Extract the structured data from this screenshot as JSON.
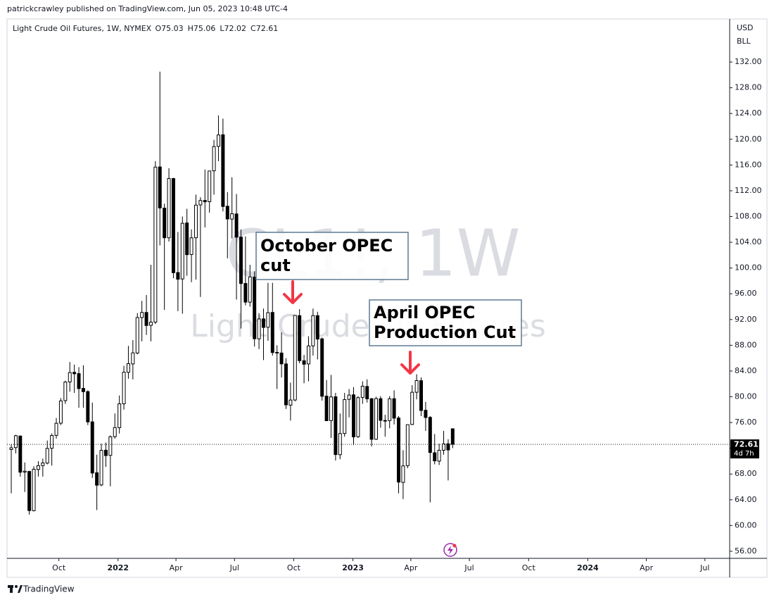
{
  "header": {
    "publisher": "patrickcrawley published on TradingView.com, Jun 05, 2023 10:48 UTC-4"
  },
  "footer": {
    "brand": "TradingView"
  },
  "chart_data": {
    "type": "candlestick",
    "title": "Light Crude Oil Futures, 1W, NYMEX",
    "ohlc_legend": [
      "O75.03",
      "H75.06",
      "L72.02",
      "C72.61"
    ],
    "watermark": [
      "CL1!, 1W",
      "Light Crude Oil Futures"
    ],
    "currency": "USD",
    "unit": "BLL",
    "last_price": 72.61,
    "countdown": "4d 7h",
    "up_color": "#ffffff",
    "down_color": "#000000",
    "outline_color": "#000000",
    "grid": false,
    "annotations": [
      {
        "lines": [
          "October OPEC",
          "cut"
        ]
      },
      {
        "lines": [
          "April OPEC",
          "Production Cut"
        ]
      }
    ],
    "x": [
      0,
      1,
      2,
      3,
      4,
      5,
      6,
      7,
      8,
      9,
      10,
      11,
      12,
      13,
      14,
      15,
      16,
      17,
      18,
      19,
      20,
      21,
      22,
      23,
      24,
      25,
      26,
      27,
      28,
      29,
      30,
      31,
      32,
      33,
      34,
      35,
      36,
      37,
      38,
      39,
      40,
      41,
      42,
      43,
      44,
      45,
      46,
      47,
      48,
      49,
      50,
      51,
      52,
      53,
      54,
      55,
      56,
      57,
      58,
      59,
      60,
      61,
      62,
      63,
      64,
      65,
      66,
      67,
      68,
      69,
      70,
      71,
      72,
      73,
      74,
      75,
      76,
      77,
      78,
      79,
      80,
      81,
      82,
      83,
      84,
      85,
      86,
      87,
      88,
      89,
      90,
      91,
      92,
      93,
      94,
      95,
      96,
      97,
      98
    ],
    "open": [
      71.8,
      72.1,
      73.9,
      68.3,
      68.4,
      62.3,
      68.7,
      69.3,
      69.7,
      72.0,
      74.0,
      75.9,
      79.4,
      82.3,
      83.8,
      83.6,
      81.3,
      80.8,
      76.1,
      68.2,
      66.3,
      71.7,
      70.9,
      73.8,
      75.2,
      78.9,
      83.8,
      85.1,
      86.8,
      92.3,
      93.1,
      91.1,
      91.6,
      115.7,
      109.3,
      104.7,
      113.9,
      99.3,
      98.3,
      107.0,
      102.1,
      104.7,
      109.8,
      110.5,
      110.3,
      115.1,
      118.9,
      120.7,
      109.6,
      107.6,
      108.4,
      104.8,
      97.6,
      94.7,
      98.6,
      89.0,
      92.1,
      90.8,
      93.1,
      86.9,
      86.8,
      85.1,
      78.7,
      79.5,
      92.6,
      85.6,
      85.1,
      87.9,
      92.6,
      89.0,
      80.1,
      76.3,
      80.0,
      71.0,
      74.3,
      79.6,
      80.3,
      73.8,
      79.9,
      81.6,
      79.7,
      73.4,
      79.7,
      76.3,
      76.3,
      79.7,
      76.7,
      66.7,
      69.3,
      75.7,
      80.7,
      82.5,
      77.9,
      76.8,
      71.3,
      70.0,
      71.7,
      72.7,
      75.03
    ],
    "high": [
      72.6,
      74.1,
      74.0,
      69.8,
      68.5,
      69.2,
      70.0,
      70.4,
      73.2,
      74.3,
      76.7,
      79.8,
      82.5,
      85.4,
      85.0,
      84.6,
      84.9,
      81.0,
      79.1,
      71.0,
      72.7,
      72.9,
      74.0,
      77.4,
      80.2,
      84.8,
      87.9,
      88.8,
      93.0,
      94.9,
      95.8,
      100.5,
      116.6,
      130.5,
      110.0,
      115.5,
      114.0,
      105.6,
      108.0,
      109.2,
      106.0,
      111.4,
      111.0,
      115.3,
      115.1,
      119.9,
      123.7,
      123.2,
      111.8,
      114.1,
      111.5,
      106.0,
      104.9,
      100.5,
      99.5,
      93.0,
      93.7,
      97.7,
      97.7,
      88.0,
      90.0,
      86.0,
      82.2,
      92.7,
      93.6,
      86.5,
      89.4,
      93.7,
      93.2,
      89.2,
      82.6,
      83.4,
      80.6,
      77.4,
      80.6,
      81.2,
      81.5,
      80.1,
      82.4,
      82.7,
      79.8,
      80.0,
      80.1,
      77.2,
      80.1,
      81.0,
      77.0,
      71.7,
      75.7,
      81.8,
      83.5,
      83.0,
      79.2,
      77.0,
      74.2,
      72.7,
      74.7,
      73.4,
      75.06
    ],
    "low": [
      65.0,
      71.2,
      67.6,
      65.2,
      61.7,
      62.2,
      67.6,
      67.6,
      69.5,
      69.3,
      73.5,
      75.6,
      78.9,
      80.8,
      80.6,
      78.3,
      78.3,
      75.6,
      67.4,
      62.4,
      66.1,
      69.1,
      66.1,
      73.5,
      74.3,
      78.0,
      82.8,
      82.7,
      86.6,
      88.6,
      89.6,
      88.6,
      91.3,
      103.5,
      93.5,
      104.1,
      98.4,
      93.3,
      92.9,
      98.8,
      97.8,
      98.2,
      95.5,
      106.3,
      108.6,
      111.4,
      116.6,
      108.8,
      101.5,
      104.6,
      95.1,
      90.6,
      94.2,
      94.0,
      87.8,
      87.4,
      85.7,
      88.7,
      86.4,
      81.2,
      83.0,
      78.1,
      76.3,
      79.3,
      85.2,
      82.1,
      82.4,
      86.4,
      85.8,
      79.4,
      76.8,
      73.6,
      70.1,
      70.3,
      73.8,
      76.8,
      72.5,
      73.6,
      78.9,
      79.1,
      72.3,
      73.3,
      75.2,
      73.8,
      75.1,
      75.7,
      65.0,
      64.1,
      68.9,
      75.6,
      79.6,
      77.0,
      74.7,
      63.6,
      69.5,
      69.4,
      71.0,
      67.0,
      72.02
    ],
    "close": [
      72.07,
      73.95,
      68.28,
      68.44,
      62.32,
      68.74,
      69.29,
      69.72,
      71.97,
      73.98,
      75.88,
      79.35,
      82.28,
      83.76,
      83.57,
      81.27,
      80.79,
      76.1,
      68.15,
      66.26,
      71.67,
      70.86,
      73.79,
      75.21,
      78.9,
      83.82,
      85.14,
      86.82,
      92.31,
      93.1,
      91.07,
      91.59,
      115.68,
      109.33,
      104.7,
      113.9,
      99.27,
      98.26,
      106.95,
      102.07,
      104.69,
      109.77,
      110.49,
      110.28,
      115.07,
      118.87,
      120.67,
      109.56,
      107.62,
      108.43,
      104.79,
      97.59,
      94.7,
      98.62,
      89.01,
      92.09,
      90.77,
      93.06,
      86.87,
      86.79,
      85.11,
      78.74,
      79.49,
      92.64,
      85.61,
      85.05,
      87.9,
      92.61,
      88.96,
      80.08,
      76.28,
      79.98,
      71.02,
      74.29,
      79.56,
      80.26,
      73.77,
      79.86,
      81.64,
      79.68,
      73.39,
      79.72,
      76.34,
      76.32,
      79.68,
      76.68,
      66.74,
      69.26,
      75.67,
      80.7,
      82.52,
      77.87,
      76.78,
      71.34,
      70.04,
      71.69,
      72.67,
      71.74,
      72.61
    ],
    "xlim": [
      -0.94,
      159.5
    ],
    "xticks": [
      {
        "value": 10.57,
        "label": "Oct"
      },
      {
        "value": 23.71,
        "label": "2022"
      },
      {
        "value": 36.57,
        "label": "Apr"
      },
      {
        "value": 49.57,
        "label": "Jul"
      },
      {
        "value": 62.71,
        "label": "Oct"
      },
      {
        "value": 75.86,
        "label": "2023"
      },
      {
        "value": 88.71,
        "label": "Apr"
      },
      {
        "value": 101.71,
        "label": "Jul"
      },
      {
        "value": 114.86,
        "label": "Oct"
      },
      {
        "value": 128,
        "label": "2024"
      },
      {
        "value": 141,
        "label": "Apr"
      },
      {
        "value": 154,
        "label": "Jul"
      }
    ],
    "ylim": [
      54.9,
      138.68
    ],
    "yticks": [
      {
        "value": 56,
        "label": "56.00"
      },
      {
        "value": 60,
        "label": "60.00"
      },
      {
        "value": 64,
        "label": "64.00"
      },
      {
        "value": 68,
        "label": "68.00"
      },
      {
        "value": 72,
        "label": "72.00"
      },
      {
        "value": 76,
        "label": "76.00"
      },
      {
        "value": 80,
        "label": "80.00"
      },
      {
        "value": 84,
        "label": "84.00"
      },
      {
        "value": 88,
        "label": "88.00"
      },
      {
        "value": 92,
        "label": "92.00"
      },
      {
        "value": 96,
        "label": "96.00"
      },
      {
        "value": 100,
        "label": "100.00"
      },
      {
        "value": 104,
        "label": "104.00"
      },
      {
        "value": 108,
        "label": "108.00"
      },
      {
        "value": 112,
        "label": "112.00"
      },
      {
        "value": 116,
        "label": "116.00"
      },
      {
        "value": 120,
        "label": "120.00"
      },
      {
        "value": 124,
        "label": "124.00"
      },
      {
        "value": 128,
        "label": "128.00"
      },
      {
        "value": 132,
        "label": "132.00"
      }
    ]
  }
}
